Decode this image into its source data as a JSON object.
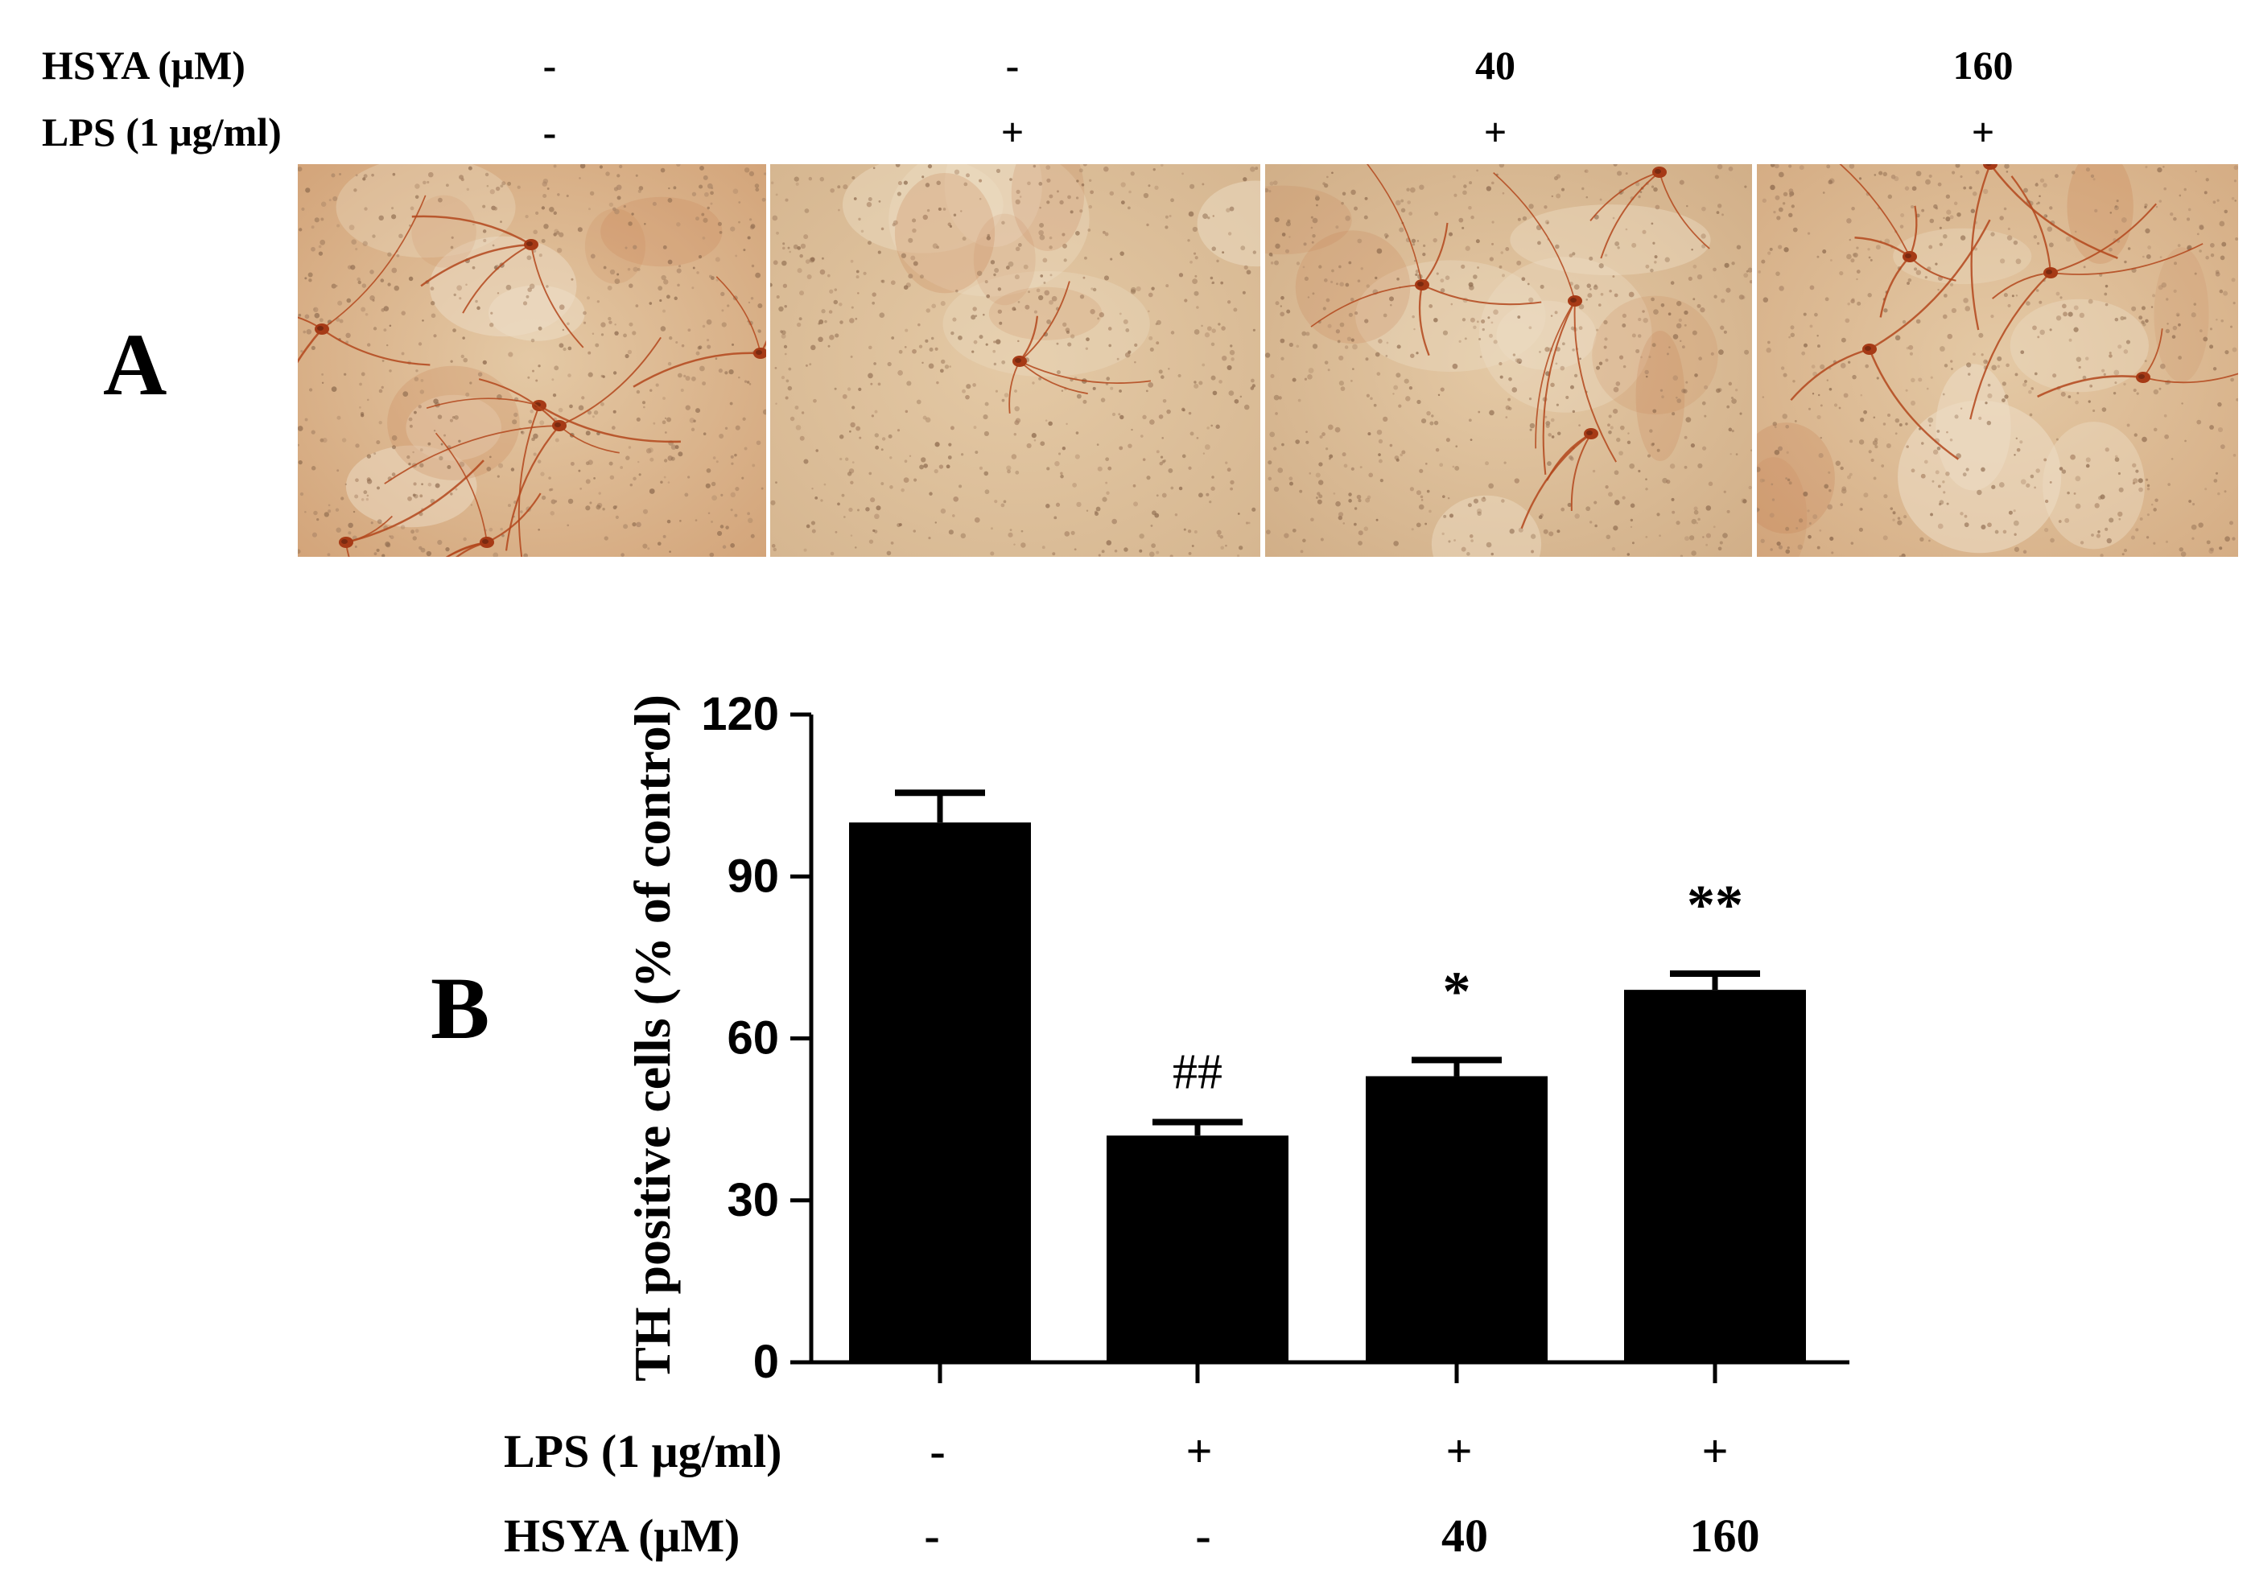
{
  "panel_a": {
    "letter": "A",
    "rows": [
      {
        "label": "HSYA (μM)",
        "values": [
          "-",
          "-",
          "40",
          "160"
        ]
      },
      {
        "label": "LPS (1 μg/ml)",
        "values": [
          "-",
          "+",
          "+",
          "+"
        ]
      }
    ],
    "micrographs": [
      {
        "name": "control",
        "tint": "#d2a277"
      },
      {
        "name": "lps",
        "tint": "#d5b58f"
      },
      {
        "name": "lps-hsya-40",
        "tint": "#d0ad86"
      },
      {
        "name": "lps-hsya-160",
        "tint": "#d4ab82"
      }
    ]
  },
  "panel_b": {
    "letter": "B",
    "rows": [
      {
        "label": "LPS (1 μg/ml)",
        "values": [
          "-",
          "+",
          "+",
          "+"
        ]
      },
      {
        "label": "HSYA (μM)",
        "values": [
          "-",
          "-",
          "40",
          "160"
        ]
      }
    ]
  },
  "chart_data": {
    "type": "bar",
    "categories": [
      "LPS - / HSYA -",
      "LPS + / HSYA -",
      "LPS + / HSYA 40",
      "LPS + / HSYA 160"
    ],
    "values": [
      100,
      42,
      53,
      69
    ],
    "errors": [
      5.5,
      2.5,
      3,
      3
    ],
    "annotations": [
      "",
      "##",
      "*",
      "**"
    ],
    "title": "",
    "xlabel": "",
    "ylabel": "TH positive cells (% of control)",
    "ylim": [
      0,
      120
    ],
    "yticks": [
      0,
      30,
      60,
      90,
      120
    ],
    "grid": false,
    "bar_color": "#000000"
  }
}
